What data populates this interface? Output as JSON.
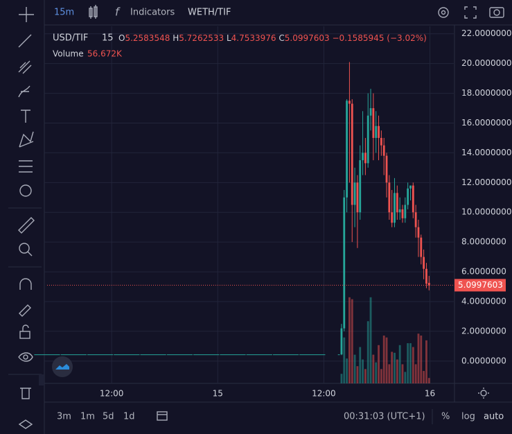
{
  "toolbar": {
    "interval": "15m",
    "indicators": "Indicators",
    "pair": "WETH/TIF"
  },
  "legend": {
    "symbol": "USD/TIF",
    "interval": "15",
    "open_label": "O",
    "open": 5.2583548,
    "high_label": "H",
    "high": 5.7262533,
    "low_label": "L",
    "low": 4.7533976,
    "close_label": "C",
    "close": 5.0997603,
    "change": "−0.1585945 (−3.02%)",
    "volume_label": "Volume",
    "volume_value": "56.672K"
  },
  "chart_data": {
    "type": "candlestick",
    "up_color": "#26a69a",
    "down_color": "#ef5350",
    "grid": true,
    "x": [
      0,
      3,
      6,
      9,
      12,
      15,
      18,
      21,
      24,
      27,
      30,
      33,
      33.3,
      33.6,
      33.9,
      34.2,
      34.5,
      34.8,
      35.1,
      35.4,
      35.7,
      36.0,
      36.3,
      36.6,
      36.9,
      37.2,
      37.5,
      37.8,
      38.1,
      38.4,
      38.7,
      39.0,
      39.3,
      39.6,
      39.9,
      40.2,
      40.5,
      40.8,
      41.1,
      41.4,
      41.7,
      42.0,
      42.3,
      42.6,
      42.9,
      43.2
    ],
    "open": [
      0.45,
      0.45,
      0.45,
      0.45,
      0.45,
      0.45,
      0.45,
      0.45,
      0.45,
      0.45,
      0.45,
      0.45,
      0.45,
      2.2,
      11,
      17.5,
      17.3,
      10.5,
      12,
      10,
      13.5,
      14,
      13.3,
      16.5,
      17,
      15,
      15.8,
      15,
      14.5,
      13.8,
      12,
      10,
      9.3,
      11.3,
      10,
      10.2,
      9.6,
      10.5,
      11.6,
      11.8,
      10,
      9,
      8.3,
      7,
      6.2,
      5.2583548
    ],
    "high": [
      0.45,
      0.45,
      0.45,
      0.45,
      0.45,
      0.45,
      0.45,
      0.45,
      0.45,
      0.45,
      0.45,
      0.45,
      2.5,
      11.5,
      17.6,
      20.1,
      17.6,
      13,
      12.5,
      14.5,
      16.8,
      15,
      18,
      18.3,
      18,
      16.8,
      16.5,
      15.5,
      15,
      14,
      12.5,
      11.5,
      12.3,
      11.8,
      11,
      10.5,
      11,
      12,
      11.8,
      12,
      10.5,
      9.5,
      8.5,
      7.5,
      6.6,
      5.7262533
    ],
    "low": [
      0.45,
      0.45,
      0.45,
      0.45,
      0.45,
      0.45,
      0.45,
      0.45,
      0.45,
      0.45,
      0.45,
      0.45,
      0.4,
      2.0,
      10,
      12,
      8.0,
      9,
      7.6,
      9.5,
      12.5,
      12.5,
      13,
      15.5,
      13.5,
      14,
      13.5,
      13.8,
      12.5,
      11,
      9.5,
      9,
      9,
      9.5,
      9.5,
      9.3,
      9.3,
      10.2,
      10.8,
      9.6,
      8.3,
      7,
      6.5,
      5.5,
      4.9,
      4.7533976
    ],
    "close": [
      0.45,
      0.45,
      0.45,
      0.45,
      0.45,
      0.45,
      0.45,
      0.45,
      0.45,
      0.45,
      0.45,
      0.45,
      2.2,
      11,
      17.5,
      17.3,
      10.5,
      12,
      10,
      13.5,
      14,
      13.3,
      16.5,
      17,
      15,
      15.8,
      15,
      14.5,
      13.8,
      12,
      10,
      9.3,
      11.3,
      10,
      10.2,
      9.6,
      10.5,
      11.6,
      11.8,
      10,
      9,
      8.3,
      7,
      6.2,
      5.2,
      5.0997603
    ],
    "volume": [
      0,
      0,
      0,
      0,
      0,
      0,
      0,
      0,
      0,
      0,
      0,
      0,
      100,
      480,
      260,
      900,
      880,
      300,
      180,
      380,
      250,
      150,
      650,
      900,
      300,
      220,
      400,
      150,
      500,
      480,
      200,
      330,
      320,
      250,
      400,
      200,
      120,
      420,
      420,
      380,
      200,
      520,
      500,
      130,
      450,
      56.672
    ],
    "vlim": [
      0,
      1000
    ],
    "last_price": 5.0997603,
    "xlim": [
      0,
      46
    ],
    "xticks": [
      {
        "value": 7.3,
        "label": "12:00"
      },
      {
        "value": 19.3,
        "label": "15"
      },
      {
        "value": 31.3,
        "label": "12:00"
      },
      {
        "value": 43.3,
        "label": "16"
      }
    ],
    "ylim": [
      -1.5,
      22.5
    ],
    "yticks": [
      {
        "value": 0,
        "label": "0.0000000"
      },
      {
        "value": 2,
        "label": "2.0000000"
      },
      {
        "value": 4,
        "label": "4.0000000"
      },
      {
        "value": 6,
        "label": "6.0000000"
      },
      {
        "value": 8,
        "label": "8.0000000"
      },
      {
        "value": 10,
        "label": "10.0000000"
      },
      {
        "value": 12,
        "label": "12.0000000"
      },
      {
        "value": 14,
        "label": "14.0000000"
      },
      {
        "value": 16,
        "label": "16.0000000"
      },
      {
        "value": 18,
        "label": "18.0000000"
      },
      {
        "value": 20,
        "label": "20.0000000"
      },
      {
        "value": 22,
        "label": "22.0000000"
      }
    ]
  },
  "bottom_bar": {
    "ranges": [
      "3m",
      "1m",
      "5d",
      "1d"
    ],
    "clock": "00:31:03 (UTC+1)",
    "percent": "%",
    "log": "log",
    "auto": "auto"
  }
}
